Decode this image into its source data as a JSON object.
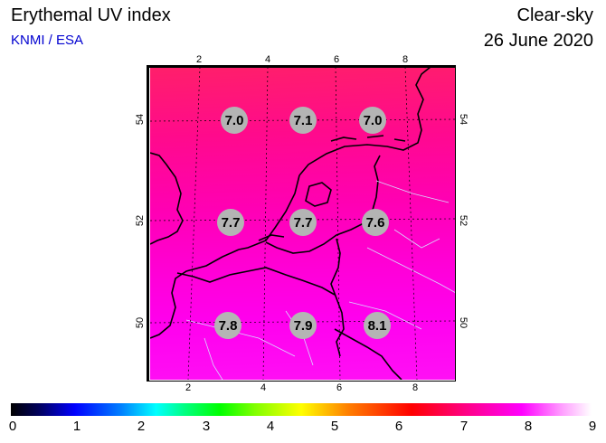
{
  "header": {
    "title": "Erythemal UV index",
    "credit": "KNMI / ESA",
    "sky": "Clear-sky",
    "date": "26 June 2020"
  },
  "map": {
    "lon_ticks": [
      "2",
      "4",
      "6",
      "8"
    ],
    "lat_ticks": [
      "54",
      "52",
      "50"
    ],
    "uv_values": [
      {
        "lat": 54,
        "lon": 3,
        "value": "7.0"
      },
      {
        "lat": 54,
        "lon": 5,
        "value": "7.1"
      },
      {
        "lat": 54,
        "lon": 7,
        "value": "7.0"
      },
      {
        "lat": 52,
        "lon": 3,
        "value": "7.7"
      },
      {
        "lat": 52,
        "lon": 5,
        "value": "7.7"
      },
      {
        "lat": 52,
        "lon": 7,
        "value": "7.6"
      },
      {
        "lat": 50,
        "lon": 3,
        "value": "7.8"
      },
      {
        "lat": 50,
        "lon": 5,
        "value": "7.9"
      },
      {
        "lat": 50,
        "lon": 7,
        "value": "8.1"
      }
    ]
  },
  "colorbar": {
    "labels": [
      "0",
      "1",
      "2",
      "3",
      "4",
      "5",
      "6",
      "7",
      "8",
      "9"
    ]
  }
}
